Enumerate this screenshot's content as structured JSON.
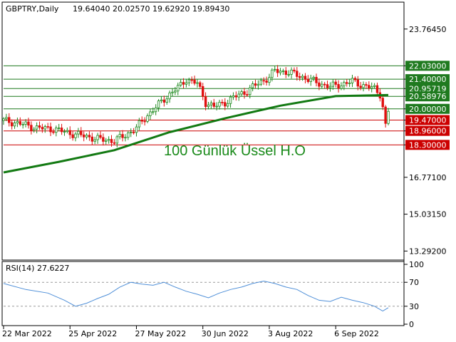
{
  "header": {
    "symbol": "GBPTRY,Daily",
    "ohlc": "19.64040 20.02570 19.62920 19.89430"
  },
  "annotation": "100 Günlük Üssel H.O",
  "price_axis": [
    "23.76450",
    "22.03000",
    "21.40000",
    "20.95719",
    "20.58976",
    "20.00000",
    "19.47000",
    "18.96000",
    "18.30000",
    "16.77100",
    "15.03150",
    "13.29200"
  ],
  "rsi_header": "RSI(14) 27.6227",
  "rsi_axis": [
    "100",
    "70",
    "30",
    "0"
  ],
  "date_axis": [
    "22 Mar 2022",
    "25 Apr 2022",
    "27 May 2022",
    "30 Jun 2022",
    "3 Aug 2022",
    "6 Sep 2022"
  ],
  "colors": {
    "bull": "#1f8a1f",
    "bear": "#e01010",
    "ema": "#137a13",
    "green_level": "#1f7a1f",
    "red_level": "#cc0000",
    "rsi_line": "#4f8fd8"
  },
  "chart_data": {
    "type": "candlestick",
    "title": "GBPTRY,Daily",
    "ylim": [
      12.9,
      25.0
    ],
    "levels": [
      {
        "value": 22.03,
        "label": "22.03000",
        "color": "green"
      },
      {
        "value": 21.4,
        "label": "21.40000",
        "color": "green"
      },
      {
        "value": 20.95719,
        "label": "20.95719",
        "color": "green"
      },
      {
        "value": 20.58976,
        "label": "20.58976",
        "color": "green"
      },
      {
        "value": 20.0,
        "label": "20.00000",
        "color": "green"
      },
      {
        "value": 19.47,
        "label": "19.47000",
        "color": "red"
      },
      {
        "value": 18.96,
        "label": "18.96000",
        "color": "red"
      },
      {
        "value": 18.3,
        "label": "18.30000",
        "color": "red"
      }
    ],
    "close_path": [
      [
        0,
        19.45
      ],
      [
        6,
        19.3
      ],
      [
        12,
        19.1
      ],
      [
        18,
        19.05
      ],
      [
        24,
        18.85
      ],
      [
        30,
        18.7
      ],
      [
        35,
        18.55
      ],
      [
        40,
        18.5
      ],
      [
        44,
        18.75
      ],
      [
        48,
        19.1
      ],
      [
        52,
        19.7
      ],
      [
        56,
        20.2
      ],
      [
        60,
        20.7
      ],
      [
        64,
        21.1
      ],
      [
        66,
        21.4
      ],
      [
        70,
        21.2
      ],
      [
        73,
        20.3
      ],
      [
        76,
        20.1
      ],
      [
        80,
        20.3
      ],
      [
        84,
        20.6
      ],
      [
        88,
        20.85
      ],
      [
        92,
        21.2
      ],
      [
        96,
        21.5
      ],
      [
        98,
        21.8
      ],
      [
        102,
        21.75
      ],
      [
        106,
        21.6
      ],
      [
        110,
        21.4
      ],
      [
        114,
        21.2
      ],
      [
        118,
        21.05
      ],
      [
        122,
        21.15
      ],
      [
        126,
        21.3
      ],
      [
        130,
        21.1
      ],
      [
        134,
        20.95
      ],
      [
        136,
        20.7
      ],
      [
        137,
        20.1
      ],
      [
        138,
        19.2
      ],
      [
        139,
        19.89
      ]
    ],
    "ema_path": [
      [
        0,
        17.0
      ],
      [
        20,
        17.5
      ],
      [
        40,
        18.05
      ],
      [
        60,
        18.9
      ],
      [
        80,
        19.55
      ],
      [
        100,
        20.15
      ],
      [
        120,
        20.6
      ],
      [
        139,
        20.65
      ]
    ],
    "x_ticks": [
      {
        "i": 0,
        "label": "22 Mar 2022"
      },
      {
        "i": 24,
        "label": "25 Apr 2022"
      },
      {
        "i": 48,
        "label": "27 May 2022"
      },
      {
        "i": 72,
        "label": "30 Jun 2022"
      },
      {
        "i": 96,
        "label": "3 Aug 2022"
      },
      {
        "i": 120,
        "label": "6 Sep 2022"
      }
    ],
    "rsi": {
      "name": "RSI(14)",
      "last": 27.6227,
      "levels": [
        70,
        30
      ],
      "ylim": [
        0,
        100
      ],
      "path": [
        [
          0,
          68
        ],
        [
          8,
          58
        ],
        [
          16,
          52
        ],
        [
          22,
          40
        ],
        [
          26,
          30
        ],
        [
          30,
          35
        ],
        [
          34,
          43
        ],
        [
          38,
          50
        ],
        [
          42,
          62
        ],
        [
          46,
          70
        ],
        [
          50,
          67
        ],
        [
          54,
          65
        ],
        [
          58,
          70
        ],
        [
          62,
          62
        ],
        [
          66,
          55
        ],
        [
          70,
          50
        ],
        [
          74,
          44
        ],
        [
          78,
          52
        ],
        [
          82,
          58
        ],
        [
          86,
          62
        ],
        [
          90,
          68
        ],
        [
          94,
          72
        ],
        [
          98,
          68
        ],
        [
          102,
          62
        ],
        [
          106,
          58
        ],
        [
          110,
          48
        ],
        [
          114,
          40
        ],
        [
          118,
          38
        ],
        [
          122,
          45
        ],
        [
          126,
          40
        ],
        [
          130,
          36
        ],
        [
          134,
          30
        ],
        [
          137,
          22
        ],
        [
          139,
          27.6
        ]
      ]
    }
  }
}
